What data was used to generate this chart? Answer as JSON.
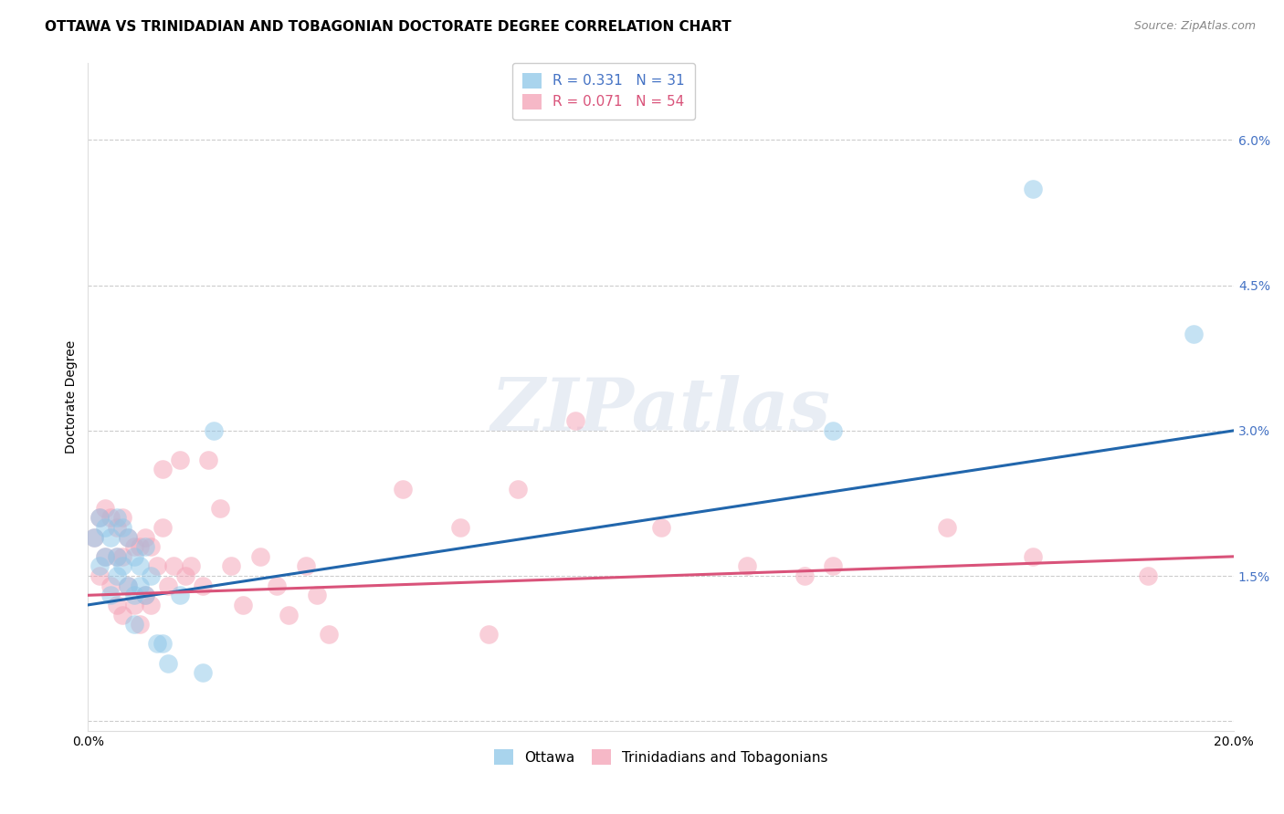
{
  "title": "OTTAWA VS TRINIDADIAN AND TOBAGONIAN DOCTORATE DEGREE CORRELATION CHART",
  "source": "Source: ZipAtlas.com",
  "ylabel": "Doctorate Degree",
  "xlim": [
    0.0,
    0.2
  ],
  "ylim": [
    -0.001,
    0.068
  ],
  "yticks": [
    0.0,
    0.015,
    0.03,
    0.045,
    0.06
  ],
  "ytick_labels": [
    "",
    "1.5%",
    "3.0%",
    "4.5%",
    "6.0%"
  ],
  "xticks": [
    0.0,
    0.05,
    0.1,
    0.15,
    0.2
  ],
  "xtick_labels": [
    "0.0%",
    "",
    "",
    "",
    "20.0%"
  ],
  "ottawa_R": 0.331,
  "ottawa_N": 31,
  "trini_R": 0.071,
  "trini_N": 54,
  "ottawa_color": "#8dc6e8",
  "trini_color": "#f4a0b5",
  "ottawa_line_color": "#2166ac",
  "trini_line_color": "#d9537a",
  "background_color": "#ffffff",
  "grid_color": "#cccccc",
  "watermark_text": "ZIPatlas",
  "ottawa_scatter_x": [
    0.001,
    0.002,
    0.002,
    0.003,
    0.003,
    0.004,
    0.004,
    0.005,
    0.005,
    0.005,
    0.006,
    0.006,
    0.007,
    0.007,
    0.008,
    0.008,
    0.008,
    0.009,
    0.009,
    0.01,
    0.01,
    0.011,
    0.012,
    0.013,
    0.014,
    0.016,
    0.02,
    0.022,
    0.13,
    0.165,
    0.193
  ],
  "ottawa_scatter_y": [
    0.019,
    0.021,
    0.016,
    0.02,
    0.017,
    0.019,
    0.013,
    0.021,
    0.017,
    0.015,
    0.02,
    0.016,
    0.019,
    0.014,
    0.017,
    0.013,
    0.01,
    0.016,
    0.014,
    0.018,
    0.013,
    0.015,
    0.008,
    0.008,
    0.006,
    0.013,
    0.005,
    0.03,
    0.03,
    0.055,
    0.04
  ],
  "trini_scatter_x": [
    0.001,
    0.002,
    0.002,
    0.003,
    0.003,
    0.004,
    0.004,
    0.005,
    0.005,
    0.005,
    0.006,
    0.006,
    0.006,
    0.007,
    0.007,
    0.008,
    0.008,
    0.009,
    0.009,
    0.01,
    0.01,
    0.011,
    0.011,
    0.012,
    0.013,
    0.013,
    0.014,
    0.015,
    0.016,
    0.017,
    0.018,
    0.02,
    0.021,
    0.023,
    0.025,
    0.027,
    0.03,
    0.033,
    0.035,
    0.038,
    0.04,
    0.042,
    0.055,
    0.065,
    0.07,
    0.075,
    0.085,
    0.1,
    0.115,
    0.125,
    0.13,
    0.15,
    0.165,
    0.185
  ],
  "trini_scatter_y": [
    0.019,
    0.021,
    0.015,
    0.022,
    0.017,
    0.021,
    0.014,
    0.02,
    0.017,
    0.012,
    0.021,
    0.017,
    0.011,
    0.019,
    0.014,
    0.018,
    0.012,
    0.018,
    0.01,
    0.019,
    0.013,
    0.018,
    0.012,
    0.016,
    0.026,
    0.02,
    0.014,
    0.016,
    0.027,
    0.015,
    0.016,
    0.014,
    0.027,
    0.022,
    0.016,
    0.012,
    0.017,
    0.014,
    0.011,
    0.016,
    0.013,
    0.009,
    0.024,
    0.02,
    0.009,
    0.024,
    0.031,
    0.02,
    0.016,
    0.015,
    0.016,
    0.02,
    0.017,
    0.015
  ],
  "legend_label_ottawa": "Ottawa",
  "legend_label_trini": "Trinidadians and Tobagonians",
  "title_fontsize": 11,
  "axis_label_fontsize": 10,
  "tick_fontsize": 10,
  "legend_fontsize": 11,
  "source_fontsize": 9,
  "legend_text_blue": "#4472c4",
  "legend_text_pink": "#d9537a"
}
